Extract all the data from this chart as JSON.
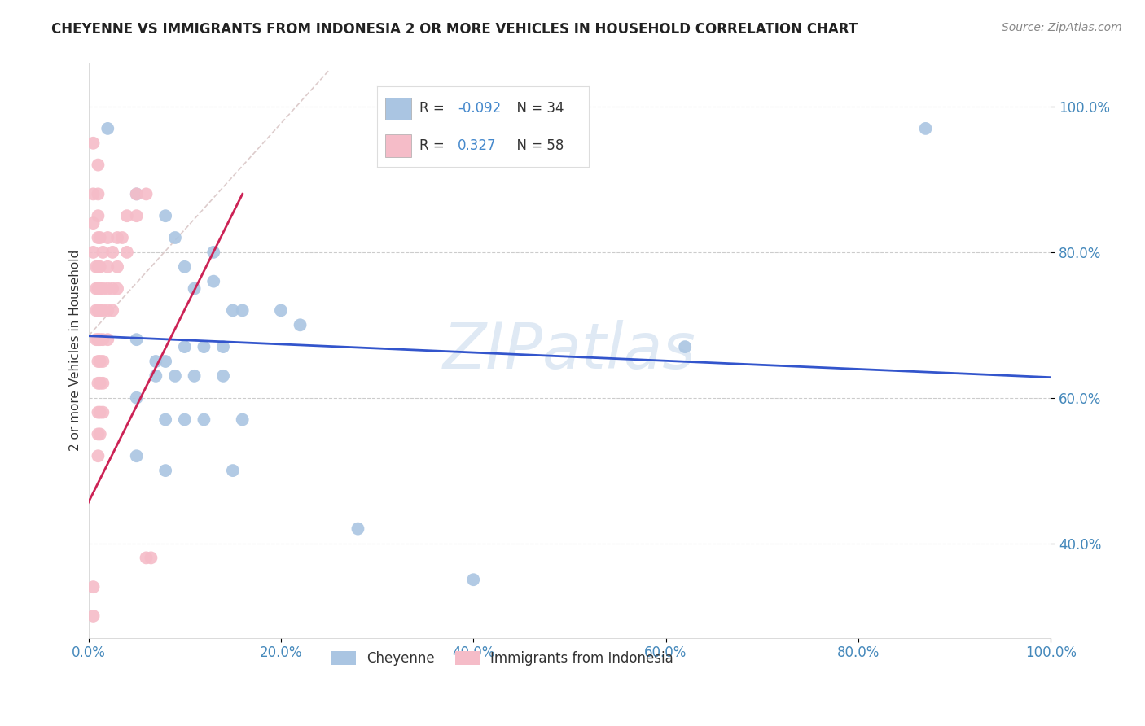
{
  "title": "CHEYENNE VS IMMIGRANTS FROM INDONESIA 2 OR MORE VEHICLES IN HOUSEHOLD CORRELATION CHART",
  "source": "Source: ZipAtlas.com",
  "ylabel": "2 or more Vehicles in Household",
  "xlim": [
    0.0,
    1.0
  ],
  "ylim": [
    0.27,
    1.06
  ],
  "xticks": [
    0.0,
    0.2,
    0.4,
    0.6,
    0.8,
    1.0
  ],
  "xtick_labels": [
    "0.0%",
    "20.0%",
    "40.0%",
    "60.0%",
    "80.0%",
    "100.0%"
  ],
  "ytick_labels": [
    "40.0%",
    "60.0%",
    "80.0%",
    "100.0%"
  ],
  "yticks": [
    0.4,
    0.6,
    0.8,
    1.0
  ],
  "watermark": "ZIPatlas",
  "legend_blue_r": "-0.092",
  "legend_blue_n": "34",
  "legend_pink_r": "0.327",
  "legend_pink_n": "58",
  "blue_color": "#aac5e2",
  "pink_color": "#f5bcc8",
  "blue_line_color": "#3355cc",
  "pink_line_color": "#cc2255",
  "diag_line_color": "#ddcccc",
  "blue_scatter": [
    [
      0.02,
      0.97
    ],
    [
      0.05,
      0.88
    ],
    [
      0.08,
      0.85
    ],
    [
      0.09,
      0.82
    ],
    [
      0.1,
      0.78
    ],
    [
      0.11,
      0.75
    ],
    [
      0.13,
      0.8
    ],
    [
      0.13,
      0.76
    ],
    [
      0.15,
      0.72
    ],
    [
      0.16,
      0.72
    ],
    [
      0.05,
      0.68
    ],
    [
      0.07,
      0.65
    ],
    [
      0.08,
      0.65
    ],
    [
      0.1,
      0.67
    ],
    [
      0.12,
      0.67
    ],
    [
      0.14,
      0.67
    ],
    [
      0.2,
      0.72
    ],
    [
      0.22,
      0.7
    ],
    [
      0.07,
      0.63
    ],
    [
      0.09,
      0.63
    ],
    [
      0.11,
      0.63
    ],
    [
      0.14,
      0.63
    ],
    [
      0.05,
      0.6
    ],
    [
      0.08,
      0.57
    ],
    [
      0.1,
      0.57
    ],
    [
      0.12,
      0.57
    ],
    [
      0.16,
      0.57
    ],
    [
      0.05,
      0.52
    ],
    [
      0.08,
      0.5
    ],
    [
      0.15,
      0.5
    ],
    [
      0.28,
      0.42
    ],
    [
      0.4,
      0.35
    ],
    [
      0.62,
      0.67
    ],
    [
      0.87,
      0.97
    ]
  ],
  "pink_scatter": [
    [
      0.005,
      0.95
    ],
    [
      0.005,
      0.88
    ],
    [
      0.005,
      0.84
    ],
    [
      0.005,
      0.8
    ],
    [
      0.008,
      0.78
    ],
    [
      0.008,
      0.75
    ],
    [
      0.008,
      0.72
    ],
    [
      0.008,
      0.68
    ],
    [
      0.01,
      0.92
    ],
    [
      0.01,
      0.88
    ],
    [
      0.01,
      0.85
    ],
    [
      0.01,
      0.82
    ],
    [
      0.01,
      0.78
    ],
    [
      0.01,
      0.75
    ],
    [
      0.01,
      0.72
    ],
    [
      0.01,
      0.68
    ],
    [
      0.01,
      0.65
    ],
    [
      0.01,
      0.62
    ],
    [
      0.01,
      0.58
    ],
    [
      0.01,
      0.55
    ],
    [
      0.01,
      0.52
    ],
    [
      0.012,
      0.82
    ],
    [
      0.012,
      0.78
    ],
    [
      0.012,
      0.75
    ],
    [
      0.012,
      0.72
    ],
    [
      0.012,
      0.68
    ],
    [
      0.012,
      0.65
    ],
    [
      0.012,
      0.62
    ],
    [
      0.012,
      0.58
    ],
    [
      0.012,
      0.55
    ],
    [
      0.015,
      0.8
    ],
    [
      0.015,
      0.75
    ],
    [
      0.015,
      0.72
    ],
    [
      0.015,
      0.68
    ],
    [
      0.015,
      0.65
    ],
    [
      0.015,
      0.62
    ],
    [
      0.015,
      0.58
    ],
    [
      0.02,
      0.82
    ],
    [
      0.02,
      0.78
    ],
    [
      0.02,
      0.75
    ],
    [
      0.02,
      0.72
    ],
    [
      0.02,
      0.68
    ],
    [
      0.025,
      0.8
    ],
    [
      0.025,
      0.75
    ],
    [
      0.025,
      0.72
    ],
    [
      0.03,
      0.82
    ],
    [
      0.03,
      0.78
    ],
    [
      0.03,
      0.75
    ],
    [
      0.035,
      0.82
    ],
    [
      0.04,
      0.85
    ],
    [
      0.04,
      0.8
    ],
    [
      0.05,
      0.88
    ],
    [
      0.05,
      0.85
    ],
    [
      0.06,
      0.88
    ],
    [
      0.06,
      0.38
    ],
    [
      0.065,
      0.38
    ],
    [
      0.005,
      0.34
    ],
    [
      0.005,
      0.3
    ]
  ],
  "blue_trendline_x": [
    0.0,
    1.0
  ],
  "blue_trendline_y": [
    0.685,
    0.628
  ],
  "pink_trendline_x": [
    -0.01,
    0.16
  ],
  "pink_trendline_y": [
    0.43,
    0.88
  ]
}
